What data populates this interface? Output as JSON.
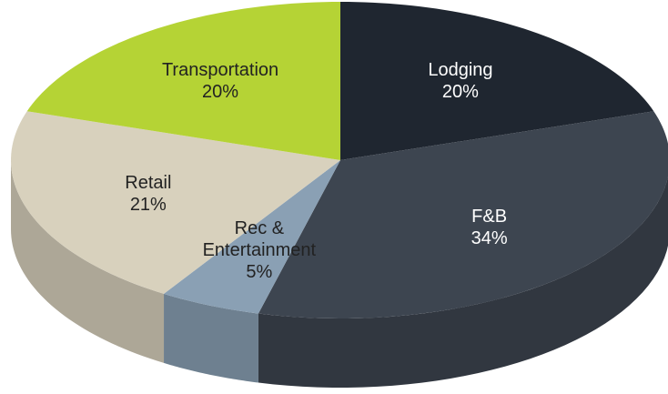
{
  "chart_data": {
    "type": "pie",
    "categories": [
      "Lodging",
      "F&B",
      "Rec & Entertainment",
      "Retail",
      "Transportation"
    ],
    "values": [
      20,
      34,
      5,
      21,
      20
    ],
    "value_labels": [
      "20%",
      "34%",
      "5%",
      "21%",
      "20%"
    ],
    "colors": [
      "#1f2630",
      "#3d4550",
      "#8aa0b4",
      "#d8d1bd",
      "#b5d335"
    ],
    "label_colors": [
      "#ffffff",
      "#ffffff",
      "#222222",
      "#222222",
      "#222222"
    ]
  }
}
